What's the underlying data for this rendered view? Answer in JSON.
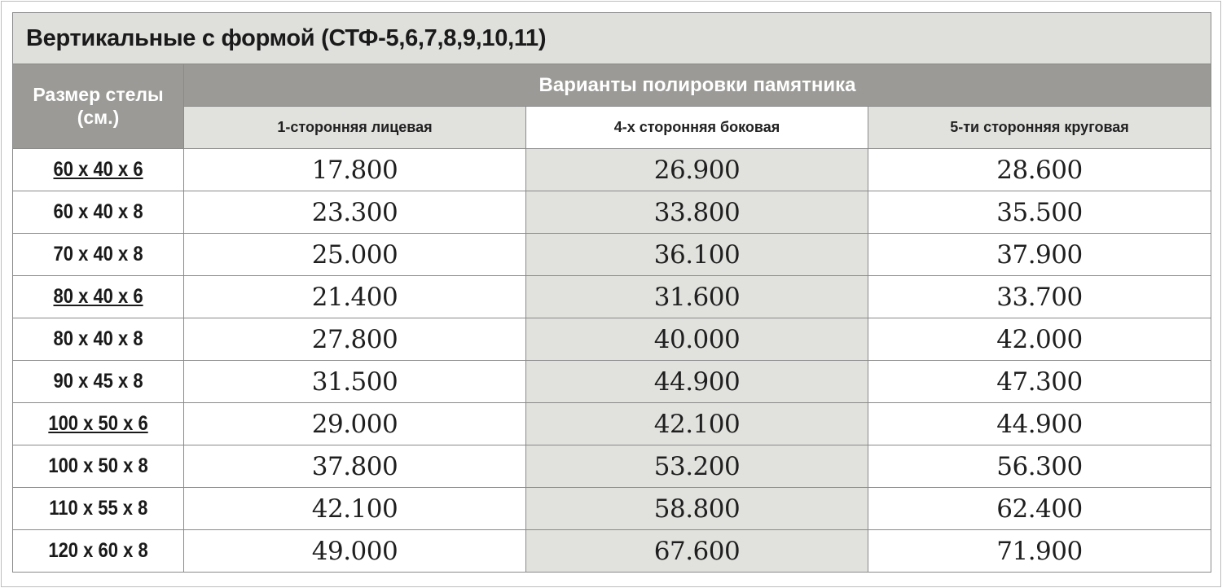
{
  "title": "Вертикальные с формой (СТФ-5,6,7,8,9,10,11)",
  "size_header": "Размер стелы (см.)",
  "group_header": "Варианты полировки памятника",
  "columns": [
    "1-сторонняя лицевая",
    "4-х сторонняя боковая",
    "5-ти сторонняя круговая"
  ],
  "rows": [
    {
      "size": "60 x 40 x 6",
      "underlined": true,
      "prices": [
        "17.800",
        "26.900",
        "28.600"
      ]
    },
    {
      "size": "60 x 40 x 8",
      "underlined": false,
      "prices": [
        "23.300",
        "33.800",
        "35.500"
      ]
    },
    {
      "size": "70 x 40 x 8",
      "underlined": false,
      "prices": [
        "25.000",
        "36.100",
        "37.900"
      ]
    },
    {
      "size": "80 x 40 x 6",
      "underlined": true,
      "prices": [
        "21.400",
        "31.600",
        "33.700"
      ]
    },
    {
      "size": "80 x 40 x 8",
      "underlined": false,
      "prices": [
        "27.800",
        "40.000",
        "42.000"
      ]
    },
    {
      "size": "90 x 45 x 8",
      "underlined": false,
      "prices": [
        "31.500",
        "44.900",
        "47.300"
      ]
    },
    {
      "size": "100 x 50 x 6",
      "underlined": true,
      "prices": [
        "29.000",
        "42.100",
        "44.900"
      ]
    },
    {
      "size": "100 x 50 x 8",
      "underlined": false,
      "prices": [
        "37.800",
        "53.200",
        "56.300"
      ]
    },
    {
      "size": "110 x 55 x 8",
      "underlined": false,
      "prices": [
        "42.100",
        "58.800",
        "62.400"
      ]
    },
    {
      "size": "120 x 60 x 8",
      "underlined": false,
      "prices": [
        "49.000",
        "67.600",
        "71.900"
      ]
    }
  ],
  "colors": {
    "header_dark": "#9b9a96",
    "header_light": "#e1e2de",
    "border": "#8a8a8a"
  }
}
